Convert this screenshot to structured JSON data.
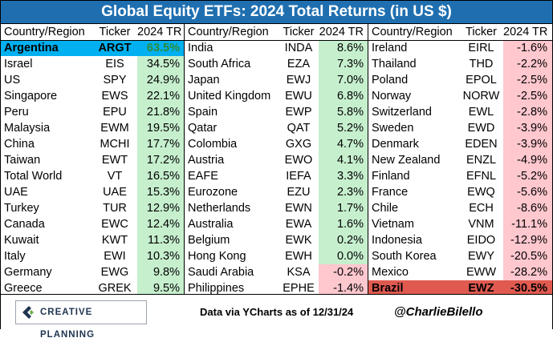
{
  "title": "Global Equity ETFs: 2024 Total Returns (in US $)",
  "colors": {
    "title_bg": "#1f6fb0",
    "positive_bg": "#c6efce",
    "negative_bg": "#ffc7ce",
    "highlight_best": "#00b0f0",
    "highlight_worst": "#e05a50"
  },
  "headers": {
    "country": "Country/Region",
    "ticker": "Ticker",
    "ret": "2024 TR"
  },
  "footer": {
    "logo_text": "CREATIVE PLANNING",
    "source": "Data via YCharts as of 12/31/24",
    "handle": "@CharlieBilello"
  },
  "chart_data": {
    "type": "table",
    "title": "Global Equity ETFs: 2024 Total Returns (in US $)",
    "columns": [
      "Country/Region",
      "Ticker",
      "2024 TR"
    ],
    "rows": [
      {
        "country": "Argentina",
        "ticker": "ARGT",
        "ret": "63.5%",
        "value": 63.5,
        "highlight": "best"
      },
      {
        "country": "Israel",
        "ticker": "EIS",
        "ret": "34.5%",
        "value": 34.5
      },
      {
        "country": "US",
        "ticker": "SPY",
        "ret": "24.9%",
        "value": 24.9
      },
      {
        "country": "Singapore",
        "ticker": "EWS",
        "ret": "22.1%",
        "value": 22.1
      },
      {
        "country": "Peru",
        "ticker": "EPU",
        "ret": "21.8%",
        "value": 21.8
      },
      {
        "country": "Malaysia",
        "ticker": "EWM",
        "ret": "19.5%",
        "value": 19.5
      },
      {
        "country": "China",
        "ticker": "MCHI",
        "ret": "17.7%",
        "value": 17.7
      },
      {
        "country": "Taiwan",
        "ticker": "EWT",
        "ret": "17.2%",
        "value": 17.2
      },
      {
        "country": "Total World",
        "ticker": "VT",
        "ret": "16.5%",
        "value": 16.5
      },
      {
        "country": "UAE",
        "ticker": "UAE",
        "ret": "15.3%",
        "value": 15.3
      },
      {
        "country": "Turkey",
        "ticker": "TUR",
        "ret": "12.9%",
        "value": 12.9
      },
      {
        "country": "Canada",
        "ticker": "EWC",
        "ret": "12.4%",
        "value": 12.4
      },
      {
        "country": "Kuwait",
        "ticker": "KWT",
        "ret": "11.3%",
        "value": 11.3
      },
      {
        "country": "Italy",
        "ticker": "EWI",
        "ret": "10.3%",
        "value": 10.3
      },
      {
        "country": "Germany",
        "ticker": "EWG",
        "ret": "9.8%",
        "value": 9.8
      },
      {
        "country": "Greece",
        "ticker": "GREK",
        "ret": "9.5%",
        "value": 9.5
      },
      {
        "country": "India",
        "ticker": "INDA",
        "ret": "8.6%",
        "value": 8.6
      },
      {
        "country": "South Africa",
        "ticker": "EZA",
        "ret": "7.3%",
        "value": 7.3
      },
      {
        "country": "Japan",
        "ticker": "EWJ",
        "ret": "7.0%",
        "value": 7.0
      },
      {
        "country": "United Kingdom",
        "ticker": "EWU",
        "ret": "6.8%",
        "value": 6.8
      },
      {
        "country": "Spain",
        "ticker": "EWP",
        "ret": "5.8%",
        "value": 5.8
      },
      {
        "country": "Qatar",
        "ticker": "QAT",
        "ret": "5.2%",
        "value": 5.2
      },
      {
        "country": "Colombia",
        "ticker": "GXG",
        "ret": "4.7%",
        "value": 4.7
      },
      {
        "country": "Austria",
        "ticker": "EWO",
        "ret": "4.1%",
        "value": 4.1
      },
      {
        "country": "EAFE",
        "ticker": "IEFA",
        "ret": "3.3%",
        "value": 3.3
      },
      {
        "country": "Eurozone",
        "ticker": "EZU",
        "ret": "2.3%",
        "value": 2.3
      },
      {
        "country": "Netherlands",
        "ticker": "EWN",
        "ret": "1.7%",
        "value": 1.7
      },
      {
        "country": "Australia",
        "ticker": "EWA",
        "ret": "1.6%",
        "value": 1.6
      },
      {
        "country": "Belgium",
        "ticker": "EWK",
        "ret": "0.2%",
        "value": 0.2
      },
      {
        "country": "Hong Kong",
        "ticker": "EWH",
        "ret": "0.0%",
        "value": 0.0
      },
      {
        "country": "Saudi Arabia",
        "ticker": "KSA",
        "ret": "-0.2%",
        "value": -0.2
      },
      {
        "country": "Philippines",
        "ticker": "EPHE",
        "ret": "-1.4%",
        "value": -1.4
      },
      {
        "country": "Ireland",
        "ticker": "EIRL",
        "ret": "-1.6%",
        "value": -1.6
      },
      {
        "country": "Thailand",
        "ticker": "THD",
        "ret": "-2.2%",
        "value": -2.2
      },
      {
        "country": "Poland",
        "ticker": "EPOL",
        "ret": "-2.5%",
        "value": -2.5
      },
      {
        "country": "Norway",
        "ticker": "NORW",
        "ret": "-2.5%",
        "value": -2.5
      },
      {
        "country": "Switzerland",
        "ticker": "EWL",
        "ret": "-2.8%",
        "value": -2.8
      },
      {
        "country": "Sweden",
        "ticker": "EWD",
        "ret": "-3.9%",
        "value": -3.9
      },
      {
        "country": "Denmark",
        "ticker": "EDEN",
        "ret": "-3.9%",
        "value": -3.9
      },
      {
        "country": "New Zealand",
        "ticker": "ENZL",
        "ret": "-4.9%",
        "value": -4.9
      },
      {
        "country": "Finland",
        "ticker": "EFNL",
        "ret": "-5.2%",
        "value": -5.2
      },
      {
        "country": "France",
        "ticker": "EWQ",
        "ret": "-5.6%",
        "value": -5.6
      },
      {
        "country": "Chile",
        "ticker": "ECH",
        "ret": "-8.6%",
        "value": -8.6
      },
      {
        "country": "Vietnam",
        "ticker": "VNM",
        "ret": "-11.1%",
        "value": -11.1
      },
      {
        "country": "Indonesia",
        "ticker": "EIDO",
        "ret": "-12.9%",
        "value": -12.9
      },
      {
        "country": "South Korea",
        "ticker": "EWY",
        "ret": "-20.5%",
        "value": -20.5
      },
      {
        "country": "Mexico",
        "ticker": "EWW",
        "ret": "-28.2%",
        "value": -28.2
      },
      {
        "country": "Brazil",
        "ticker": "EWZ",
        "ret": "-30.5%",
        "value": -30.5,
        "highlight": "worst"
      }
    ]
  }
}
